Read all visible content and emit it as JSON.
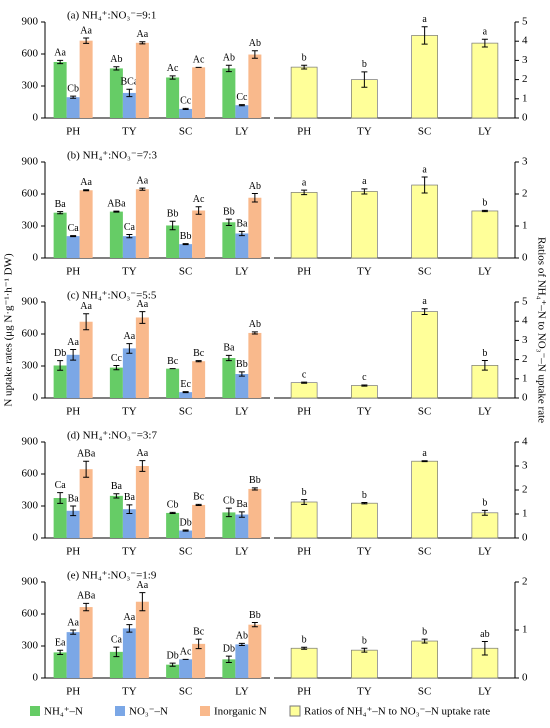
{
  "legend": [
    {
      "name": "NH₄⁺–N",
      "color": "#66cc66"
    },
    {
      "name": "NO₃⁻–N",
      "color": "#7ba7e6"
    },
    {
      "name": "Inorganic N",
      "color": "#f9b98c"
    },
    {
      "name": "Ratios of NH₄⁺–N to NO₃⁻–N uptake rate",
      "color": "#ffff99"
    }
  ],
  "ylabel": "N uptake rates (μg N·g⁻¹·h⁻¹ DW)",
  "y2label": "Ratios of NH₄⁺–N to NO₃⁻–N uptake rate",
  "chart_data": [
    {
      "type": "bar",
      "title": "(a) NH₄⁺:NO₃⁻=9:1",
      "categories": [
        "PH",
        "TY",
        "SC",
        "LY"
      ],
      "ylim": [
        0,
        900
      ],
      "yticks": [
        0,
        300,
        600,
        900
      ],
      "y2lim": [
        0,
        5
      ],
      "y2ticks": [
        0,
        1,
        2,
        3,
        4,
        5
      ],
      "series": [
        {
          "values": [
            525,
            465,
            380,
            465
          ],
          "errors": [
            15,
            15,
            15,
            30
          ],
          "letters": [
            "Aa",
            "Ab",
            "Ac",
            "Ab"
          ]
        },
        {
          "values": [
            195,
            235,
            85,
            120
          ],
          "errors": [
            10,
            35,
            5,
            5
          ],
          "letters": [
            "Cb",
            "BCa",
            "Cc",
            "Cc"
          ]
        },
        {
          "values": [
            725,
            705,
            475,
            595
          ],
          "errors": [
            25,
            10,
            0,
            35
          ],
          "letters": [
            "Aa",
            "Aa",
            "Ac",
            "Ab"
          ]
        },
        {
          "axis": "y2",
          "values": [
            2.65,
            2.0,
            4.3,
            3.9
          ],
          "errors": [
            0.1,
            0.4,
            0.45,
            0.2
          ],
          "letters": [
            "b",
            "b",
            "a",
            "a"
          ]
        }
      ]
    },
    {
      "type": "bar",
      "title": "(b) NH₄⁺:NO₃⁻=7:3",
      "categories": [
        "PH",
        "TY",
        "SC",
        "LY"
      ],
      "ylim": [
        0,
        900
      ],
      "yticks": [
        0,
        300,
        600,
        900
      ],
      "y2lim": [
        0,
        3
      ],
      "y2ticks": [
        0,
        1,
        2,
        3
      ],
      "series": [
        {
          "values": [
            425,
            435,
            305,
            335
          ],
          "errors": [
            10,
            5,
            40,
            30
          ],
          "letters": [
            "Ba",
            "ABa",
            "Bb",
            "Bb"
          ]
        },
        {
          "values": [
            205,
            205,
            130,
            230
          ],
          "errors": [
            5,
            15,
            5,
            20
          ],
          "letters": [
            "Ca",
            "Ca",
            "Bb",
            "Ba"
          ]
        },
        {
          "values": [
            635,
            645,
            445,
            565
          ],
          "errors": [
            5,
            10,
            35,
            40
          ],
          "letters": [
            "Aa",
            "Aa",
            "Ac",
            "Ab"
          ]
        },
        {
          "axis": "y2",
          "values": [
            2.05,
            2.08,
            2.28,
            1.47
          ],
          "errors": [
            0.07,
            0.08,
            0.25,
            0.02
          ],
          "letters": [
            "a",
            "a",
            "a",
            "b"
          ]
        }
      ]
    },
    {
      "type": "bar",
      "title": "(c) NH₄⁺:NO₃⁻=5:5",
      "categories": [
        "PH",
        "TY",
        "SC",
        "LY"
      ],
      "ylim": [
        0,
        900
      ],
      "yticks": [
        0,
        300,
        600,
        900
      ],
      "y2lim": [
        0,
        5
      ],
      "y2ticks": [
        0,
        1,
        2,
        3,
        4,
        5
      ],
      "series": [
        {
          "values": [
            305,
            285,
            275,
            375
          ],
          "errors": [
            45,
            20,
            0,
            25
          ],
          "letters": [
            "Db",
            "Cc",
            "Bc",
            "Ba"
          ]
        },
        {
          "values": [
            405,
            465,
            55,
            225
          ],
          "errors": [
            50,
            45,
            5,
            20
          ],
          "letters": [
            "Aa",
            "Aa",
            "Ec",
            "Bb"
          ]
        },
        {
          "values": [
            715,
            755,
            345,
            610
          ],
          "errors": [
            75,
            55,
            5,
            10
          ],
          "letters": [
            "Aa",
            "Aa",
            "Bc",
            "Ab"
          ]
        },
        {
          "axis": "y2",
          "values": [
            0.8,
            0.65,
            4.5,
            1.7
          ],
          "errors": [
            0.03,
            0.03,
            0.15,
            0.25
          ],
          "letters": [
            "c",
            "c",
            "a",
            "b"
          ]
        }
      ]
    },
    {
      "type": "bar",
      "title": "(d) NH₄⁺:NO₃⁻=3:7",
      "categories": [
        "PH",
        "TY",
        "SC",
        "LY"
      ],
      "ylim": [
        0,
        900
      ],
      "yticks": [
        0,
        300,
        600,
        900
      ],
      "y2lim": [
        0,
        4
      ],
      "y2ticks": [
        0,
        1,
        2,
        3,
        4
      ],
      "series": [
        {
          "values": [
            375,
            395,
            235,
            240
          ],
          "errors": [
            50,
            20,
            5,
            40
          ],
          "letters": [
            "Ca",
            "Ba",
            "Cb",
            "Cb"
          ]
        },
        {
          "values": [
            255,
            270,
            70,
            220
          ],
          "errors": [
            45,
            40,
            5,
            25
          ],
          "letters": [
            "Ba",
            "Ba",
            "Db",
            "Ba"
          ]
        },
        {
          "values": [
            645,
            675,
            310,
            460
          ],
          "errors": [
            75,
            50,
            5,
            10
          ],
          "letters": [
            "ABa",
            "Aa",
            "Bc",
            "Bb"
          ]
        },
        {
          "axis": "y2",
          "values": [
            1.5,
            1.45,
            3.2,
            1.05
          ],
          "errors": [
            0.1,
            0.03,
            0.02,
            0.1
          ],
          "letters": [
            "b",
            "b",
            "a",
            "b"
          ]
        }
      ]
    },
    {
      "type": "bar",
      "title": "(e) NH₄⁺:NO₃⁻=1:9",
      "categories": [
        "PH",
        "TY",
        "SC",
        "LY"
      ],
      "ylim": [
        0,
        900
      ],
      "yticks": [
        0,
        300,
        600,
        900
      ],
      "y2lim": [
        0,
        2
      ],
      "y2ticks": [
        0,
        1,
        2
      ],
      "series": [
        {
          "values": [
            240,
            245,
            125,
            175
          ],
          "errors": [
            20,
            45,
            15,
            30
          ],
          "letters": [
            "Ea",
            "Ca",
            "Db",
            "Db"
          ]
        },
        {
          "values": [
            430,
            465,
            175,
            315
          ],
          "errors": [
            20,
            35,
            0,
            10
          ],
          "letters": [
            "Aa",
            "Aa",
            "Ac",
            "Ab"
          ]
        },
        {
          "values": [
            665,
            715,
            320,
            500
          ],
          "errors": [
            35,
            85,
            45,
            20
          ],
          "letters": [
            "ABa",
            "Aa",
            "Bc",
            "Bb"
          ]
        },
        {
          "axis": "y2",
          "values": [
            0.62,
            0.58,
            0.77,
            0.62
          ],
          "errors": [
            0.02,
            0.04,
            0.04,
            0.14
          ],
          "letters": [
            "b",
            "b",
            "b",
            "ab"
          ]
        }
      ]
    }
  ]
}
